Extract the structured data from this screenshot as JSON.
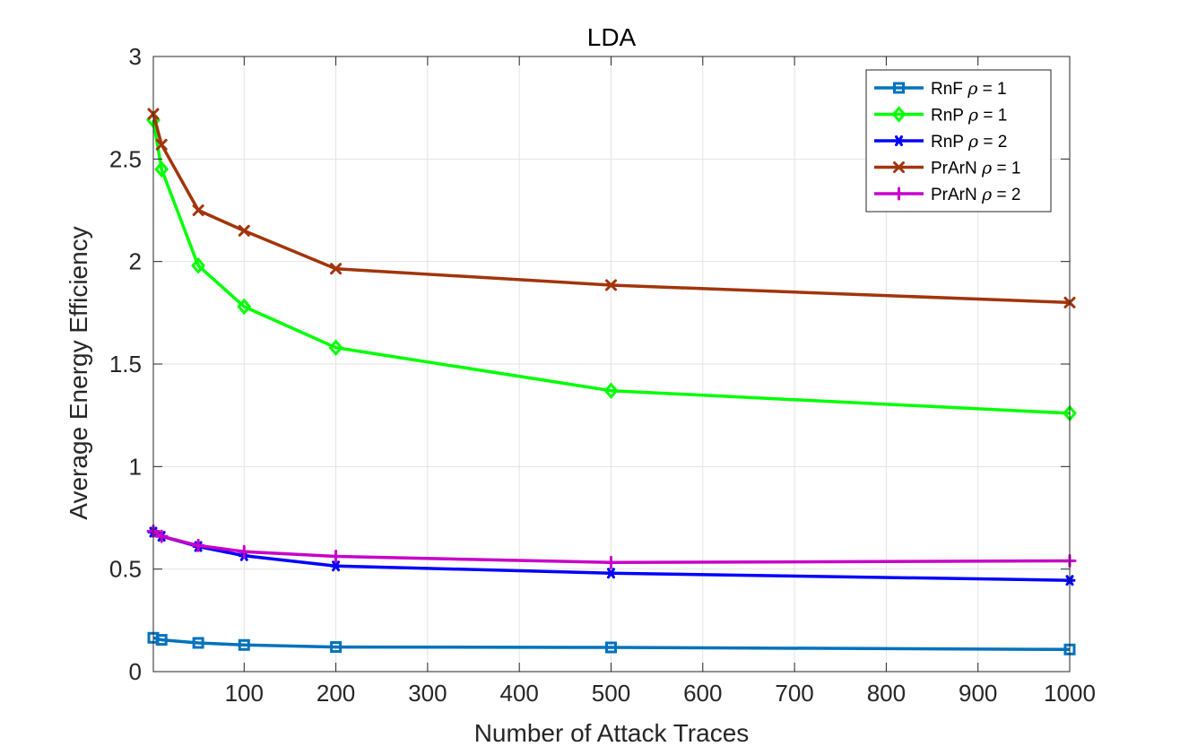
{
  "chart_data": {
    "type": "line",
    "title": "LDA",
    "xlabel": "Number of Attack Traces",
    "ylabel": "Average Energy Efficiency",
    "xlim": [
      1,
      1000
    ],
    "ylim": [
      0,
      3
    ],
    "xticks": [
      100,
      200,
      300,
      400,
      500,
      600,
      700,
      800,
      900,
      1000
    ],
    "yticks": [
      0,
      0.5,
      1,
      1.5,
      2,
      2.5,
      3
    ],
    "ytick_labels": [
      "0",
      "0.5",
      "1",
      "1.5",
      "2",
      "2.5",
      "3"
    ],
    "grid": true,
    "legend_location": "top-right",
    "x": [
      1,
      10,
      50,
      100,
      200,
      500,
      1000
    ],
    "series": [
      {
        "name": "RnF",
        "rho": "ρ",
        "eq": "= 1",
        "color": "#0072BD",
        "marker": "square",
        "values": [
          0.165,
          0.155,
          0.14,
          0.13,
          0.12,
          0.118,
          0.108
        ]
      },
      {
        "name": "RnP",
        "rho": "ρ",
        "eq": "= 1",
        "color": "#00FF00",
        "marker": "diamond",
        "values": [
          2.69,
          2.45,
          1.98,
          1.78,
          1.58,
          1.37,
          1.26
        ]
      },
      {
        "name": "RnP",
        "rho": "ρ",
        "eq": "= 2",
        "color": "#0000FF",
        "marker": "asterisk",
        "values": [
          0.68,
          0.66,
          0.61,
          0.565,
          0.515,
          0.48,
          0.445
        ]
      },
      {
        "name": "PrArN",
        "rho": "ρ",
        "eq": "= 1",
        "color": "#A2350A",
        "marker": "x",
        "values": [
          2.72,
          2.57,
          2.25,
          2.15,
          1.965,
          1.885,
          1.8
        ]
      },
      {
        "name": "PrArN",
        "rho": "ρ",
        "eq": "= 2",
        "color": "#C800C8",
        "marker": "plus",
        "values": [
          0.685,
          0.66,
          0.615,
          0.585,
          0.562,
          0.532,
          0.54
        ]
      }
    ]
  }
}
